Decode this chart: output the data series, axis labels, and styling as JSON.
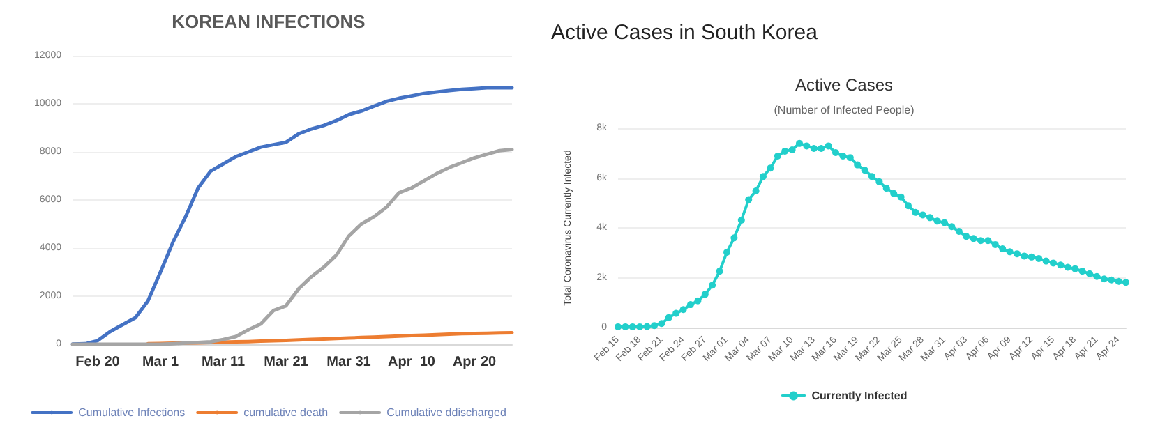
{
  "chart_data": [
    {
      "type": "line",
      "title": "KOREAN INFECTIONS",
      "categories": [
        null,
        null,
        "Feb 20",
        null,
        null,
        null,
        null,
        "Mar 1",
        null,
        null,
        null,
        null,
        "Mar 11",
        null,
        null,
        null,
        null,
        "Mar 21",
        null,
        null,
        null,
        null,
        "Mar 31",
        null,
        null,
        null,
        null,
        "Apr  10",
        null,
        null,
        null,
        null,
        "Apr 20",
        null,
        null,
        null
      ],
      "series": [
        {
          "name": "Cumulative Infections",
          "color": "#4472c4",
          "values": [
            10,
            20,
            150,
            530,
            820,
            1100,
            1800,
            3000,
            4250,
            5300,
            6500,
            7200,
            7500,
            7800,
            8000,
            8200,
            8300,
            8400,
            8750,
            8950,
            9100,
            9300,
            9550,
            9700,
            9900,
            10100,
            10230,
            10330,
            10430,
            10490,
            10550,
            10600,
            10630,
            10670,
            10670,
            10670
          ]
        },
        {
          "name": "cumulative death",
          "color": "#ed7d31",
          "values": [
            null,
            null,
            null,
            null,
            null,
            null,
            20,
            30,
            40,
            50,
            60,
            75,
            90,
            100,
            110,
            130,
            145,
            160,
            180,
            200,
            220,
            240,
            260,
            280,
            300,
            320,
            340,
            360,
            380,
            400,
            420,
            440,
            450,
            460,
            470,
            480
          ]
        },
        {
          "name": "Cumulative ddischarged",
          "color": "#a5a5a5",
          "values": [
            0,
            0,
            0,
            0,
            0,
            0,
            0,
            0,
            20,
            50,
            70,
            100,
            200,
            320,
            600,
            850,
            1400,
            1600,
            2300,
            2800,
            3200,
            3700,
            4500,
            5000,
            5300,
            5700,
            6300,
            6500,
            6800,
            7100,
            7350,
            7550,
            7750,
            7900,
            8050,
            8100
          ]
        }
      ],
      "ylim": [
        0,
        12000
      ],
      "yticks": [
        0,
        2000,
        4000,
        6000,
        8000,
        10000,
        12000
      ],
      "grid": "y",
      "legend": "bottom",
      "marker": "none",
      "line_style": "solid"
    },
    {
      "type": "line",
      "title": "Active Cases",
      "subtitle": "(Number of Infected People)",
      "ylabel": "Total Coronavirus Currently Infected",
      "annotations": [
        "Active Cases in South Korea"
      ],
      "categories": [
        "Feb 15",
        null,
        null,
        "Feb 18",
        null,
        null,
        "Feb 21",
        null,
        null,
        "Feb 24",
        null,
        null,
        "Feb 27",
        null,
        null,
        "Mar 01",
        null,
        null,
        "Mar 04",
        null,
        null,
        "Mar 07",
        null,
        null,
        "Mar 10",
        null,
        null,
        "Mar 13",
        null,
        null,
        "Mar 16",
        null,
        null,
        "Mar 19",
        null,
        null,
        "Mar 22",
        null,
        null,
        "Mar 25",
        null,
        null,
        "Mar 28",
        null,
        null,
        "Mar 31",
        null,
        null,
        "Apr 03",
        null,
        null,
        "Apr 06",
        null,
        null,
        "Apr 09",
        null,
        null,
        "Apr 12",
        null,
        null,
        "Apr 15",
        null,
        null,
        "Apr 18",
        null,
        null,
        "Apr 21",
        null,
        null,
        "Apr 24",
        null
      ],
      "series": [
        {
          "name": "Currently Infected",
          "color": "#22cfcb",
          "values": [
            30,
            30,
            30,
            30,
            40,
            80,
            160,
            400,
            570,
            720,
            920,
            1070,
            1330,
            1700,
            2260,
            3020,
            3600,
            4310,
            5130,
            5480,
            6060,
            6400,
            6880,
            7080,
            7130,
            7390,
            7290,
            7190,
            7190,
            7290,
            7020,
            6880,
            6820,
            6530,
            6320,
            6060,
            5850,
            5590,
            5380,
            5240,
            4890,
            4620,
            4520,
            4410,
            4270,
            4210,
            4050,
            3860,
            3660,
            3570,
            3490,
            3490,
            3330,
            3160,
            3040,
            2960,
            2870,
            2830,
            2770,
            2670,
            2590,
            2510,
            2420,
            2360,
            2260,
            2160,
            2050,
            1950,
            1910,
            1850,
            1810
          ]
        }
      ],
      "ylim": [
        0,
        8000
      ],
      "yticks": [
        0,
        {
          "value": 2000,
          "label": "2k"
        },
        {
          "value": 4000,
          "label": "4k"
        },
        {
          "value": 6000,
          "label": "6k"
        },
        {
          "value": 8000,
          "label": "8k"
        }
      ],
      "grid": "y",
      "legend": "bottom",
      "marker": "circle",
      "line_style": "solid"
    }
  ]
}
